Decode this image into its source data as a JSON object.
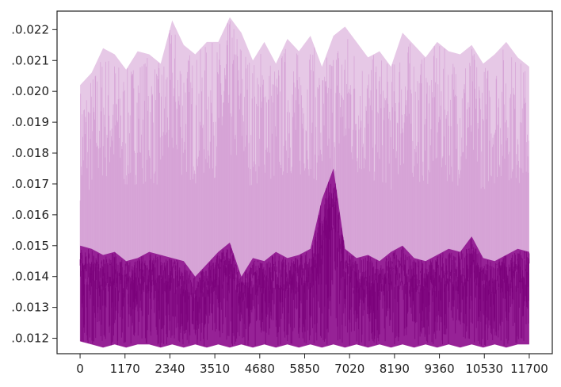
{
  "chart_data": {
    "type": "area",
    "title": "",
    "xlabel": "",
    "ylabel": "",
    "xlim": [
      -600,
      12300
    ],
    "ylim": [
      0.0115,
      0.0226
    ],
    "x_ticks": [
      0,
      1170,
      2340,
      3510,
      4680,
      5850,
      7020,
      8190,
      9360,
      10530,
      11700
    ],
    "x_tick_labels": [
      "0",
      "1170",
      "2340",
      "3510",
      "4680",
      "5850",
      "7020",
      "8190",
      "9360",
      "10530",
      "11700"
    ],
    "y_ticks": [
      0.012,
      0.013,
      0.014,
      0.015,
      0.016,
      0.017,
      0.018,
      0.019,
      0.02,
      0.021,
      0.022
    ],
    "y_tick_labels": [
      ".0.012",
      ".0.013",
      ".0.014",
      ".0.015",
      ".0.016",
      ".0.017",
      ".0.018",
      ".0.019",
      ".0.020",
      ".0.021",
      ".0.022"
    ],
    "grid": false,
    "colors": {
      "upper_band": "#e6c8e6",
      "upper_spikes": "#cc8acc",
      "core": "#8b0a8b",
      "dark_line": "#7a007a"
    },
    "series": [
      {
        "x": [
          0,
          300,
          600,
          900,
          1200,
          1500,
          1800,
          2100,
          2400,
          2700,
          3000,
          3300,
          3600,
          3900,
          4200,
          4500,
          4800,
          5100,
          5400,
          5700,
          6000,
          6300,
          6600,
          6900,
          7200,
          7500,
          7800,
          8100,
          8400,
          8700,
          9000,
          9300,
          9600,
          9900,
          10200,
          10500,
          10800,
          11100,
          11400,
          11700
        ],
        "upper": [
          0.0202,
          0.0206,
          0.0214,
          0.0212,
          0.0207,
          0.0213,
          0.0212,
          0.0209,
          0.0223,
          0.0215,
          0.0212,
          0.0216,
          0.0216,
          0.0224,
          0.0219,
          0.021,
          0.0216,
          0.0209,
          0.0217,
          0.0213,
          0.0218,
          0.0208,
          0.0218,
          0.0221,
          0.0216,
          0.0211,
          0.0213,
          0.0208,
          0.0219,
          0.0215,
          0.0211,
          0.0216,
          0.0213,
          0.0212,
          0.0215,
          0.0209,
          0.0212,
          0.0216,
          0.0211,
          0.0208
        ],
        "core_top": [
          0.015,
          0.0149,
          0.0147,
          0.0148,
          0.0145,
          0.0146,
          0.0148,
          0.0147,
          0.0146,
          0.0145,
          0.014,
          0.0144,
          0.0148,
          0.0151,
          0.014,
          0.0146,
          0.0145,
          0.0148,
          0.0146,
          0.0147,
          0.0149,
          0.0165,
          0.0175,
          0.0149,
          0.0146,
          0.0147,
          0.0145,
          0.0148,
          0.015,
          0.0146,
          0.0145,
          0.0147,
          0.0149,
          0.0148,
          0.0153,
          0.0146,
          0.0145,
          0.0147,
          0.0149,
          0.0148
        ],
        "lower": [
          0.0119,
          0.0118,
          0.0117,
          0.0118,
          0.0117,
          0.0118,
          0.0118,
          0.0117,
          0.0118,
          0.0117,
          0.0118,
          0.0117,
          0.0118,
          0.0117,
          0.0118,
          0.0117,
          0.0118,
          0.0117,
          0.0118,
          0.0117,
          0.0118,
          0.0117,
          0.0118,
          0.0117,
          0.0118,
          0.0117,
          0.0118,
          0.0117,
          0.0118,
          0.0117,
          0.0118,
          0.0117,
          0.0118,
          0.0117,
          0.0118,
          0.0117,
          0.0118,
          0.0117,
          0.0118,
          0.0118
        ]
      }
    ]
  }
}
